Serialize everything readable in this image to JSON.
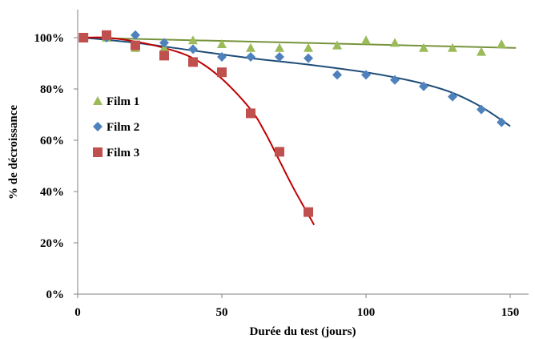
{
  "chart_data": {
    "type": "scatter",
    "title": "",
    "xlabel": "Durée du test (jours)",
    "ylabel": "% de décroissance",
    "xlim": [
      0,
      158
    ],
    "ylim": [
      0,
      100
    ],
    "x_ticks": [
      0,
      50,
      100,
      150
    ],
    "x_tick_labels": [
      "0",
      "50",
      "100",
      "150"
    ],
    "y_ticks": [
      0,
      20,
      40,
      60,
      80,
      100
    ],
    "y_tick_labels": [
      "0%",
      "20%",
      "40%",
      "60%",
      "80%",
      "100%"
    ],
    "grid": false,
    "legend_position": "left",
    "series": [
      {
        "name": "Film 1",
        "marker": "triangle",
        "color": "#9BBB59",
        "trend_color": "#77933C",
        "x": [
          2,
          10,
          20,
          30,
          40,
          50,
          60,
          70,
          80,
          90,
          100,
          110,
          120,
          130,
          140,
          147
        ],
        "y": [
          100,
          100,
          96,
          96,
          99,
          97.5,
          96,
          96,
          96,
          97,
          99,
          98,
          96,
          96,
          94.5,
          97.5
        ],
        "trend": [
          [
            2,
            100
          ],
          [
            152,
            96
          ]
        ]
      },
      {
        "name": "Film 2",
        "marker": "diamond",
        "color": "#4F81BD",
        "trend_color": "#1F4E79",
        "x": [
          2,
          10,
          20,
          30,
          40,
          50,
          60,
          70,
          80,
          90,
          100,
          110,
          120,
          130,
          140,
          147
        ],
        "y": [
          100,
          100,
          101,
          98,
          95.5,
          92.5,
          92.5,
          92.5,
          92,
          85.5,
          85.5,
          83.5,
          81,
          77,
          72,
          67
        ],
        "trend": [
          [
            2,
            100
          ],
          [
            20,
            98
          ],
          [
            40,
            95
          ],
          [
            60,
            92
          ],
          [
            80,
            89.5
          ],
          [
            100,
            86.5
          ],
          [
            110,
            84.5
          ],
          [
            120,
            82
          ],
          [
            130,
            78.5
          ],
          [
            140,
            73
          ],
          [
            150,
            65.5
          ]
        ]
      },
      {
        "name": "Film 3",
        "marker": "square",
        "color": "#C0504D",
        "trend_color": "#C00000",
        "x": [
          2,
          10,
          20,
          30,
          40,
          50,
          60,
          70,
          80
        ],
        "y": [
          100,
          101,
          97,
          93,
          90.5,
          86.5,
          70.5,
          55.5,
          32
        ],
        "trend": [
          [
            2,
            100
          ],
          [
            10,
            100
          ],
          [
            20,
            98.5
          ],
          [
            30,
            96
          ],
          [
            40,
            92
          ],
          [
            50,
            84
          ],
          [
            60,
            72
          ],
          [
            65,
            63
          ],
          [
            70,
            52
          ],
          [
            75,
            41
          ],
          [
            82,
            27
          ]
        ]
      }
    ]
  }
}
